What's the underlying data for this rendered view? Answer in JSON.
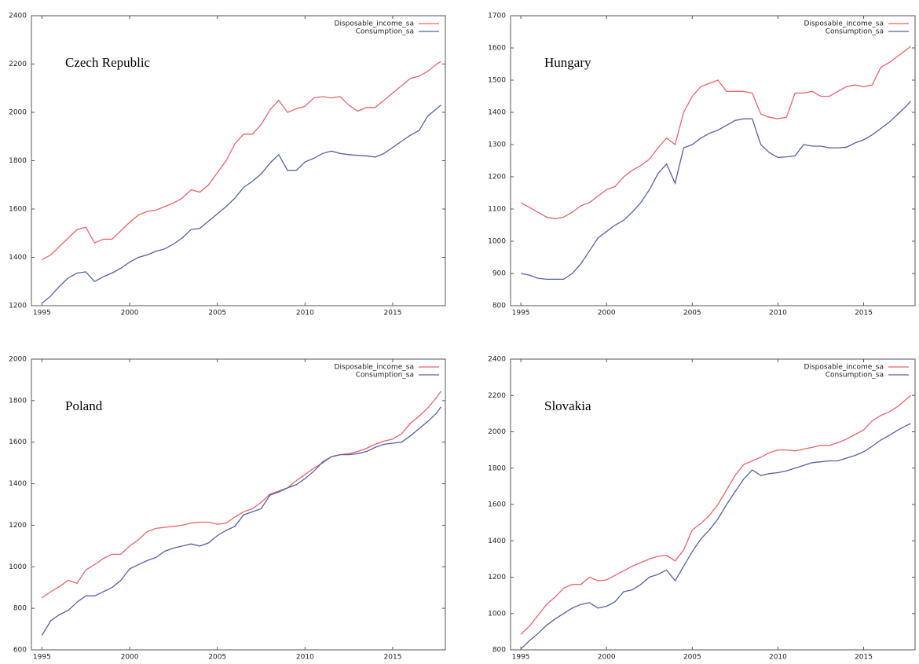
{
  "chart_data": [
    {
      "type": "line",
      "title": "Czech Republic",
      "legend": "upper right",
      "grid": false,
      "xlim": [
        1994.4,
        2018
      ],
      "xticks": [
        1995,
        2000,
        2005,
        2010,
        2015
      ],
      "ylim": [
        1200,
        2400
      ],
      "yticks": [
        1200,
        1400,
        1600,
        1800,
        2000,
        2200,
        2400
      ],
      "x": [
        1995,
        1995.5,
        1996,
        1996.5,
        1997,
        1997.5,
        1998,
        1998.5,
        1999,
        1999.5,
        2000,
        2000.5,
        2001,
        2001.5,
        2002,
        2002.5,
        2003,
        2003.5,
        2004,
        2004.5,
        2005,
        2005.5,
        2006,
        2006.5,
        2007,
        2007.5,
        2008,
        2008.5,
        2009,
        2009.5,
        2010,
        2010.5,
        2011,
        2011.5,
        2012,
        2012.5,
        2013,
        2013.5,
        2014,
        2014.5,
        2015,
        2015.5,
        2016,
        2016.5,
        2017,
        2017.5,
        2017.75
      ],
      "series": [
        {
          "name": "Disposable_income_sa",
          "color": "#e8646a",
          "values": [
            1390,
            1410,
            1445,
            1480,
            1515,
            1525,
            1460,
            1475,
            1475,
            1510,
            1545,
            1575,
            1590,
            1595,
            1610,
            1625,
            1645,
            1680,
            1670,
            1700,
            1750,
            1800,
            1870,
            1910,
            1910,
            1950,
            2010,
            2050,
            2000,
            2015,
            2025,
            2060,
            2065,
            2060,
            2065,
            2030,
            2005,
            2020,
            2020,
            2050,
            2080,
            2110,
            2140,
            2150,
            2170,
            2200,
            2210
          ]
        },
        {
          "name": "Consumption_sa",
          "color": "#5560a8",
          "values": [
            1210,
            1240,
            1280,
            1315,
            1335,
            1340,
            1300,
            1320,
            1335,
            1355,
            1380,
            1400,
            1410,
            1425,
            1435,
            1455,
            1480,
            1515,
            1520,
            1550,
            1580,
            1610,
            1645,
            1690,
            1715,
            1745,
            1790,
            1825,
            1760,
            1760,
            1795,
            1810,
            1830,
            1840,
            1830,
            1825,
            1822,
            1820,
            1815,
            1830,
            1855,
            1880,
            1905,
            1925,
            1985,
            2015,
            2030
          ]
        }
      ]
    },
    {
      "type": "line",
      "title": "Hungary",
      "legend": "upper right",
      "grid": false,
      "xlim": [
        1994.4,
        2018
      ],
      "xticks": [
        1995,
        2000,
        2005,
        2010,
        2015
      ],
      "ylim": [
        800,
        1700
      ],
      "yticks": [
        800,
        900,
        1000,
        1100,
        1200,
        1300,
        1400,
        1500,
        1600,
        1700
      ],
      "x": [
        1995,
        1995.5,
        1996,
        1996.5,
        1997,
        1997.5,
        1998,
        1998.5,
        1999,
        1999.5,
        2000,
        2000.5,
        2001,
        2001.5,
        2002,
        2002.5,
        2003,
        2003.5,
        2004,
        2004.5,
        2005,
        2005.5,
        2006,
        2006.5,
        2007,
        2007.5,
        2008,
        2008.5,
        2009,
        2009.5,
        2010,
        2010.5,
        2011,
        2011.5,
        2012,
        2012.5,
        2013,
        2013.5,
        2014,
        2014.5,
        2015,
        2015.5,
        2016,
        2016.5,
        2017,
        2017.5,
        2017.75
      ],
      "series": [
        {
          "name": "Disposable_income_sa",
          "color": "#e8646a",
          "values": [
            1120,
            1105,
            1090,
            1075,
            1070,
            1075,
            1090,
            1110,
            1120,
            1140,
            1160,
            1170,
            1200,
            1220,
            1235,
            1255,
            1290,
            1320,
            1300,
            1400,
            1450,
            1480,
            1490,
            1500,
            1465,
            1465,
            1465,
            1460,
            1395,
            1385,
            1380,
            1385,
            1460,
            1460,
            1465,
            1450,
            1450,
            1465,
            1480,
            1485,
            1480,
            1485,
            1540,
            1555,
            1575,
            1595,
            1605
          ]
        },
        {
          "name": "Consumption_sa",
          "color": "#5560a8",
          "values": [
            900,
            895,
            885,
            882,
            882,
            882,
            900,
            930,
            970,
            1010,
            1030,
            1050,
            1065,
            1090,
            1120,
            1160,
            1210,
            1240,
            1180,
            1290,
            1300,
            1320,
            1335,
            1345,
            1360,
            1375,
            1380,
            1380,
            1300,
            1275,
            1260,
            1262,
            1265,
            1300,
            1295,
            1295,
            1290,
            1290,
            1292,
            1305,
            1315,
            1330,
            1350,
            1370,
            1395,
            1420,
            1435
          ]
        }
      ]
    },
    {
      "type": "line",
      "title": "Poland",
      "legend": "upper right",
      "grid": false,
      "xlim": [
        1994.4,
        2018
      ],
      "xticks": [
        1995,
        2000,
        2005,
        2010,
        2015
      ],
      "ylim": [
        600,
        2000
      ],
      "yticks": [
        600,
        800,
        1000,
        1200,
        1400,
        1600,
        1800,
        2000
      ],
      "x": [
        1995,
        1995.5,
        1996,
        1996.5,
        1997,
        1997.5,
        1998,
        1998.5,
        1999,
        1999.5,
        2000,
        2000.5,
        2001,
        2001.5,
        2002,
        2002.5,
        2003,
        2003.5,
        2004,
        2004.5,
        2005,
        2005.5,
        2006,
        2006.5,
        2007,
        2007.5,
        2008,
        2008.5,
        2009,
        2009.5,
        2010,
        2010.5,
        2011,
        2011.5,
        2012,
        2012.5,
        2013,
        2013.5,
        2014,
        2014.5,
        2015,
        2015.5,
        2016,
        2016.5,
        2017,
        2017.5,
        2017.75
      ],
      "series": [
        {
          "name": "Disposable_income_sa",
          "color": "#e8646a",
          "values": [
            850,
            880,
            905,
            935,
            920,
            985,
            1010,
            1040,
            1060,
            1060,
            1100,
            1130,
            1170,
            1185,
            1190,
            1195,
            1200,
            1210,
            1215,
            1215,
            1205,
            1210,
            1240,
            1265,
            1280,
            1310,
            1350,
            1365,
            1380,
            1415,
            1445,
            1475,
            1500,
            1530,
            1540,
            1545,
            1555,
            1570,
            1590,
            1605,
            1615,
            1640,
            1690,
            1725,
            1765,
            1815,
            1845
          ]
        },
        {
          "name": "Consumption_sa",
          "color": "#5560a8",
          "values": [
            670,
            740,
            770,
            790,
            830,
            860,
            860,
            880,
            900,
            935,
            990,
            1010,
            1030,
            1045,
            1075,
            1090,
            1100,
            1110,
            1100,
            1115,
            1150,
            1175,
            1195,
            1250,
            1265,
            1280,
            1345,
            1360,
            1380,
            1395,
            1425,
            1460,
            1505,
            1530,
            1540,
            1540,
            1545,
            1555,
            1575,
            1590,
            1595,
            1600,
            1630,
            1665,
            1700,
            1740,
            1770
          ]
        }
      ]
    },
    {
      "type": "line",
      "title": "Slovakia",
      "legend": "upper right",
      "grid": false,
      "xlim": [
        1994.4,
        2018
      ],
      "xticks": [
        1995,
        2000,
        2005,
        2010,
        2015
      ],
      "ylim": [
        800,
        2400
      ],
      "yticks": [
        800,
        1000,
        1200,
        1400,
        1600,
        1800,
        2000,
        2200,
        2400
      ],
      "x": [
        1995,
        1995.5,
        1996,
        1996.5,
        1997,
        1997.5,
        1998,
        1998.5,
        1999,
        1999.5,
        2000,
        2000.5,
        2001,
        2001.5,
        2002,
        2002.5,
        2003,
        2003.5,
        2004,
        2004.5,
        2005,
        2005.5,
        2006,
        2006.5,
        2007,
        2007.5,
        2008,
        2008.5,
        2009,
        2009.5,
        2010,
        2010.5,
        2011,
        2011.5,
        2012,
        2012.5,
        2013,
        2013.5,
        2014,
        2014.5,
        2015,
        2015.5,
        2016,
        2016.5,
        2017,
        2017.5,
        2017.75
      ],
      "series": [
        {
          "name": "Disposable_income_sa",
          "color": "#e8646a",
          "values": [
            885,
            930,
            990,
            1050,
            1090,
            1140,
            1160,
            1160,
            1200,
            1180,
            1185,
            1210,
            1235,
            1260,
            1280,
            1300,
            1315,
            1320,
            1290,
            1350,
            1460,
            1495,
            1540,
            1600,
            1680,
            1760,
            1820,
            1840,
            1860,
            1885,
            1900,
            1900,
            1895,
            1905,
            1915,
            1925,
            1925,
            1940,
            1960,
            1985,
            2010,
            2060,
            2090,
            2110,
            2140,
            2180,
            2200
          ]
        },
        {
          "name": "Consumption_sa",
          "color": "#5560a8",
          "values": [
            805,
            850,
            890,
            935,
            970,
            1000,
            1030,
            1050,
            1060,
            1030,
            1040,
            1065,
            1120,
            1130,
            1160,
            1200,
            1215,
            1240,
            1180,
            1260,
            1340,
            1410,
            1460,
            1520,
            1600,
            1670,
            1740,
            1790,
            1760,
            1770,
            1775,
            1785,
            1800,
            1815,
            1830,
            1835,
            1840,
            1840,
            1855,
            1870,
            1890,
            1920,
            1955,
            1980,
            2010,
            2035,
            2045
          ]
        }
      ]
    }
  ]
}
